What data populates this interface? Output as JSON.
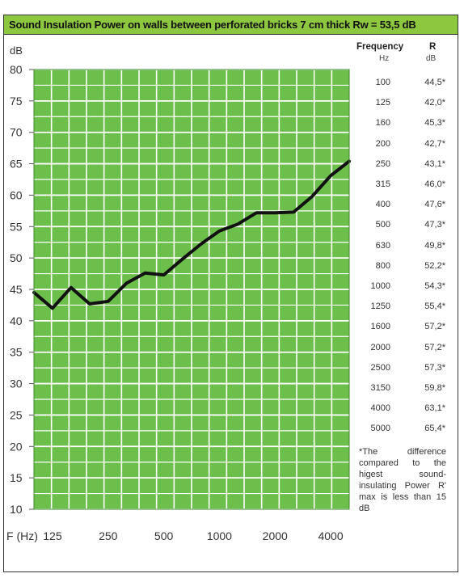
{
  "title": "Sound Insulation Power on walls between perforated bricks 7 cm thick Rw = 53,5 dB",
  "chart_data": {
    "type": "line",
    "ylabel": "dB",
    "xlabel": "F (Hz)",
    "ylim": [
      10,
      80
    ],
    "yticks": [
      "80",
      "75",
      "70",
      "65",
      "60",
      "55",
      "50",
      "45",
      "40",
      "35",
      "30",
      "25",
      "20",
      "15",
      "10"
    ],
    "xtick_labels": [
      "125",
      "250",
      "500",
      "1000",
      "2000",
      "4000"
    ],
    "grid": true,
    "x": [
      100,
      125,
      160,
      200,
      250,
      315,
      400,
      500,
      630,
      800,
      1000,
      1250,
      1600,
      2000,
      2500,
      3150,
      4000,
      5000
    ],
    "values": [
      44.5,
      42.0,
      45.3,
      42.7,
      43.1,
      46.0,
      47.6,
      47.3,
      49.8,
      52.2,
      54.3,
      55.4,
      57.2,
      57.2,
      57.3,
      59.8,
      63.1,
      65.4
    ],
    "colors": {
      "plot_bg": "#6dbf4b",
      "grid": "#ffffff",
      "line": "#111111"
    }
  },
  "table": {
    "header_freq": "Frequency",
    "header_freq_unit": "Hz",
    "header_r": "R",
    "header_r_unit": "dB",
    "rows": [
      {
        "f": "100",
        "r": "44,5*"
      },
      {
        "f": "125",
        "r": "42,0*"
      },
      {
        "f": "160",
        "r": "45,3*"
      },
      {
        "f": "200",
        "r": "42,7*"
      },
      {
        "f": "250",
        "r": "43,1*"
      },
      {
        "f": "315",
        "r": "46,0*"
      },
      {
        "f": "400",
        "r": "47,6*"
      },
      {
        "f": "500",
        "r": "47,3*"
      },
      {
        "f": "630",
        "r": "49,8*"
      },
      {
        "f": "800",
        "r": "52,2*"
      },
      {
        "f": "1000",
        "r": "54,3*"
      },
      {
        "f": "1250",
        "r": "55,4*"
      },
      {
        "f": "1600",
        "r": "57,2*"
      },
      {
        "f": "2000",
        "r": "57,2*"
      },
      {
        "f": "2500",
        "r": "57,3*"
      },
      {
        "f": "3150",
        "r": "59,8*"
      },
      {
        "f": "4000",
        "r": "63,1*"
      },
      {
        "f": "5000",
        "r": "65,4*"
      }
    ]
  },
  "footnote": "*The difference compared to the higest sound-insulating Power R' max is less than 15 dB"
}
